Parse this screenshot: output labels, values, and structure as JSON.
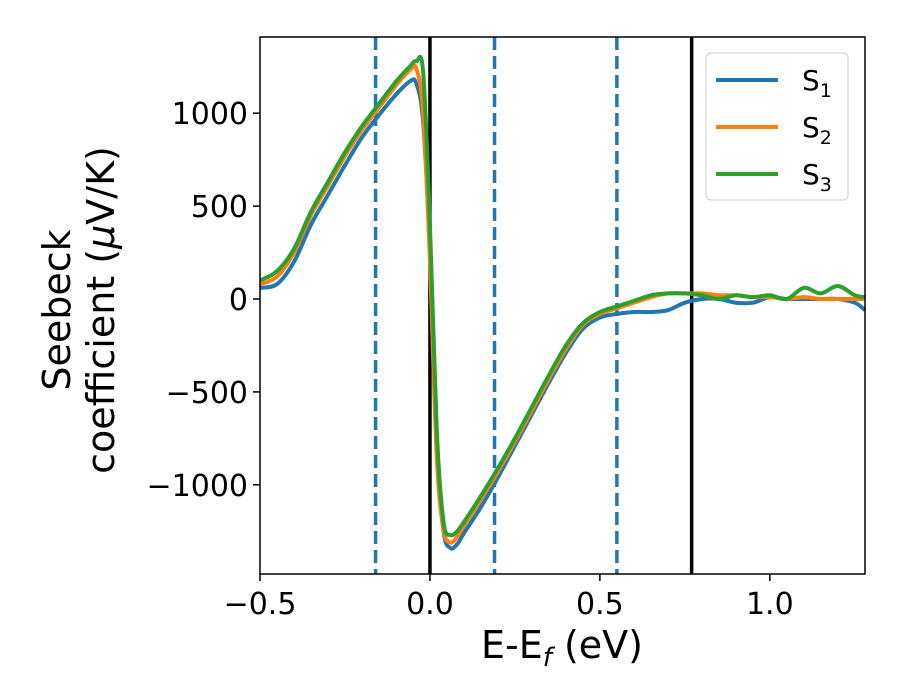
{
  "chart_data": {
    "type": "line",
    "xlabel": {
      "main": "E-E",
      "sub": "f",
      "unit": " (eV)"
    },
    "ylabel": {
      "line1": "Seebeck",
      "line2_prefix": "coefficient  (",
      "mu": "μ",
      "line2_suffix": "V/K)"
    },
    "xlim": [
      -0.5,
      1.28
    ],
    "ylim": [
      -1480,
      1410
    ],
    "xticks": [
      -0.5,
      0.0,
      0.5,
      1.0
    ],
    "xtick_labels": [
      "−0.5",
      "0.0",
      "0.5",
      "1.0"
    ],
    "yticks": [
      -1000,
      -500,
      0,
      500,
      1000
    ],
    "ytick_labels": [
      "−1000",
      "−500",
      "0",
      "500",
      "1000"
    ],
    "grid": false,
    "legend_position": "top-right",
    "vlines_dashed": [
      -0.16,
      0.19,
      0.55
    ],
    "vlines_solid": [
      0.0,
      0.77
    ],
    "series": [
      {
        "name": "S",
        "sub": "1",
        "color": "#1f77b4",
        "x": [
          -0.5,
          -0.45,
          -0.4,
          -0.35,
          -0.3,
          -0.25,
          -0.2,
          -0.15,
          -0.1,
          -0.06,
          -0.04,
          -0.02,
          0.0,
          0.02,
          0.04,
          0.06,
          0.08,
          0.1,
          0.15,
          0.2,
          0.25,
          0.3,
          0.35,
          0.4,
          0.45,
          0.5,
          0.55,
          0.6,
          0.65,
          0.7,
          0.75,
          0.8,
          0.85,
          0.9,
          0.95,
          1.0,
          1.05,
          1.1,
          1.15,
          1.2,
          1.25,
          1.28
        ],
        "y": [
          60,
          80,
          200,
          400,
          560,
          720,
          870,
          990,
          1100,
          1170,
          1160,
          950,
          250,
          -800,
          -1250,
          -1340,
          -1320,
          -1260,
          -1120,
          -960,
          -790,
          -620,
          -450,
          -290,
          -160,
          -100,
          -80,
          -70,
          -70,
          -60,
          -20,
          0,
          0,
          -20,
          -20,
          10,
          0,
          0,
          0,
          0,
          -20,
          -60
        ]
      },
      {
        "name": "S",
        "sub": "2",
        "color": "#ff7f0e",
        "x": [
          -0.5,
          -0.45,
          -0.4,
          -0.35,
          -0.3,
          -0.25,
          -0.2,
          -0.15,
          -0.1,
          -0.06,
          -0.04,
          -0.02,
          0.0,
          0.02,
          0.04,
          0.06,
          0.08,
          0.1,
          0.15,
          0.2,
          0.25,
          0.3,
          0.35,
          0.4,
          0.45,
          0.5,
          0.55,
          0.6,
          0.65,
          0.7,
          0.75,
          0.8,
          0.85,
          0.9,
          0.95,
          1.0,
          1.05,
          1.1,
          1.15,
          1.2,
          1.25,
          1.28
        ],
        "y": [
          80,
          120,
          250,
          450,
          610,
          770,
          910,
          1030,
          1150,
          1230,
          1240,
          1000,
          200,
          -850,
          -1240,
          -1310,
          -1280,
          -1220,
          -1080,
          -930,
          -770,
          -600,
          -430,
          -270,
          -140,
          -80,
          -50,
          -20,
          10,
          30,
          30,
          30,
          20,
          20,
          10,
          10,
          0,
          10,
          0,
          0,
          0,
          0
        ]
      },
      {
        "name": "S",
        "sub": "3",
        "color": "#2ca02c",
        "x": [
          -0.5,
          -0.45,
          -0.4,
          -0.35,
          -0.3,
          -0.25,
          -0.2,
          -0.15,
          -0.1,
          -0.06,
          -0.04,
          -0.02,
          0.0,
          0.02,
          0.04,
          0.06,
          0.08,
          0.1,
          0.15,
          0.2,
          0.25,
          0.3,
          0.35,
          0.4,
          0.45,
          0.5,
          0.55,
          0.6,
          0.65,
          0.7,
          0.75,
          0.8,
          0.85,
          0.9,
          0.95,
          1.0,
          1.05,
          1.1,
          1.15,
          1.2,
          1.25,
          1.28
        ],
        "y": [
          100,
          150,
          270,
          470,
          630,
          790,
          930,
          1050,
          1170,
          1250,
          1280,
          1220,
          400,
          -700,
          -1200,
          -1270,
          -1250,
          -1200,
          -1060,
          -910,
          -750,
          -580,
          -410,
          -250,
          -130,
          -70,
          -40,
          -10,
          20,
          30,
          30,
          20,
          0,
          20,
          10,
          20,
          0,
          60,
          30,
          70,
          20,
          10
        ]
      }
    ]
  }
}
